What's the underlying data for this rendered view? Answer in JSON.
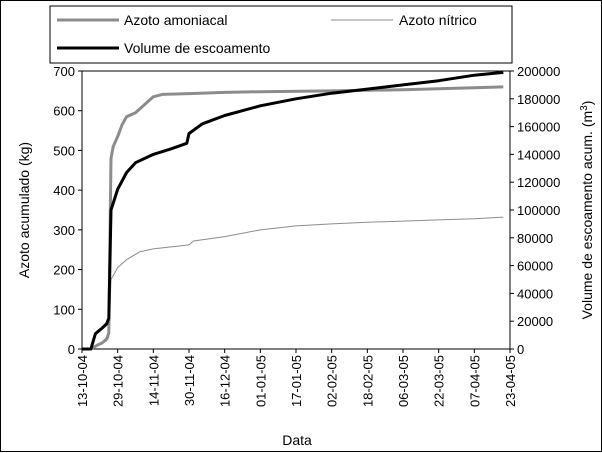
{
  "chart_data": {
    "type": "line",
    "xlabel": "Data",
    "ylabel_left": "Azoto acumulado (kg)",
    "ylabel_right_main": "Volume de escoamento acum. (m",
    "ylabel_right_sup": "3",
    "ylabel_right_close": ")",
    "ylim_left": [
      0,
      700
    ],
    "ylim_right": [
      0,
      200000
    ],
    "left_ticks": [
      "0",
      "100",
      "200",
      "300",
      "400",
      "500",
      "600",
      "700"
    ],
    "right_ticks": [
      "0",
      "20000",
      "40000",
      "60000",
      "80000",
      "100000",
      "120000",
      "140000",
      "160000",
      "180000",
      "200000"
    ],
    "x_ticks": [
      "13-10-04",
      "29-10-04",
      "14-11-04",
      "30-11-04",
      "16-12-04",
      "01-01-05",
      "17-01-05",
      "02-02-05",
      "18-02-05",
      "06-03-05",
      "22-03-05",
      "07-04-05",
      "23-04-05"
    ],
    "x_start": "2004-10-13",
    "x_end": "2005-04-23",
    "grid": false,
    "legend_position": "top",
    "series": [
      {
        "name": "Azoto amoniacal",
        "axis": "left",
        "color": "#8c8c8c",
        "points": [
          [
            "2004-10-13",
            0
          ],
          [
            "2004-10-17",
            0
          ],
          [
            "2004-10-20",
            10
          ],
          [
            "2004-10-22",
            15
          ],
          [
            "2004-10-24",
            25
          ],
          [
            "2004-10-25",
            40
          ],
          [
            "2004-10-26",
            480
          ],
          [
            "2004-10-27",
            510
          ],
          [
            "2004-10-29",
            535
          ],
          [
            "2004-10-31",
            565
          ],
          [
            "2004-11-02",
            585
          ],
          [
            "2004-11-06",
            595
          ],
          [
            "2004-11-10",
            615
          ],
          [
            "2004-11-14",
            635
          ],
          [
            "2004-11-18",
            641
          ],
          [
            "2004-11-30",
            643
          ],
          [
            "2004-12-16",
            646
          ],
          [
            "2005-01-01",
            648
          ],
          [
            "2005-02-02",
            650
          ],
          [
            "2005-03-06",
            653
          ],
          [
            "2005-04-07",
            658
          ],
          [
            "2005-04-20",
            660
          ]
        ]
      },
      {
        "name": "Azoto nítrico",
        "axis": "left",
        "color": "#8c8c8c",
        "points": [
          [
            "2004-10-13",
            0
          ],
          [
            "2004-10-17",
            0
          ],
          [
            "2004-10-20",
            10
          ],
          [
            "2004-10-24",
            20
          ],
          [
            "2004-10-25",
            30
          ],
          [
            "2004-10-26",
            175
          ],
          [
            "2004-10-29",
            205
          ],
          [
            "2004-11-02",
            225
          ],
          [
            "2004-11-08",
            245
          ],
          [
            "2004-11-14",
            252
          ],
          [
            "2004-11-30",
            262
          ],
          [
            "2004-12-02",
            272
          ],
          [
            "2004-12-16",
            283
          ],
          [
            "2005-01-01",
            300
          ],
          [
            "2005-01-17",
            310
          ],
          [
            "2005-02-02",
            315
          ],
          [
            "2005-02-18",
            319
          ],
          [
            "2005-03-06",
            322
          ],
          [
            "2005-03-22",
            325
          ],
          [
            "2005-04-07",
            328
          ],
          [
            "2005-04-20",
            332
          ]
        ]
      },
      {
        "name": "Volume de escoamento",
        "axis": "right",
        "color": "#000000",
        "points": [
          [
            "2004-10-13",
            0
          ],
          [
            "2004-10-17",
            0
          ],
          [
            "2004-10-19",
            11000
          ],
          [
            "2004-10-22",
            15000
          ],
          [
            "2004-10-24",
            18000
          ],
          [
            "2004-10-25",
            22000
          ],
          [
            "2004-10-26",
            100000
          ],
          [
            "2004-10-29",
            115000
          ],
          [
            "2004-11-02",
            127000
          ],
          [
            "2004-11-06",
            134000
          ],
          [
            "2004-11-14",
            140000
          ],
          [
            "2004-11-22",
            144000
          ],
          [
            "2004-11-29",
            148000
          ],
          [
            "2004-11-30",
            155000
          ],
          [
            "2004-12-06",
            162000
          ],
          [
            "2004-12-16",
            168000
          ],
          [
            "2005-01-01",
            175000
          ],
          [
            "2005-01-17",
            180000
          ],
          [
            "2005-02-02",
            184000
          ],
          [
            "2005-02-18",
            187000
          ],
          [
            "2005-03-06",
            190000
          ],
          [
            "2005-03-22",
            193000
          ],
          [
            "2005-04-07",
            197000
          ],
          [
            "2005-04-20",
            199000
          ]
        ]
      }
    ]
  }
}
